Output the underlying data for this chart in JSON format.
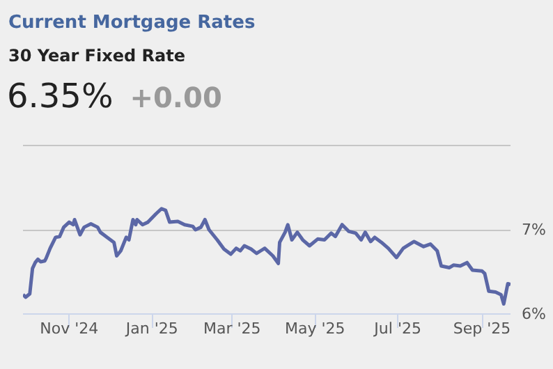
{
  "chart_data": {
    "type": "line",
    "title": "Current Mortgage Rates",
    "subtitle": "30 Year Fixed Rate",
    "annotations": [
      "6.35%",
      "+0.00"
    ],
    "x": [
      "2024-09-28",
      "2024-09-30",
      "2024-10-03",
      "2024-10-05",
      "2024-10-07",
      "2024-10-09",
      "2024-10-11",
      "2024-10-14",
      "2024-10-15",
      "2024-10-18",
      "2024-10-22",
      "2024-10-25",
      "2024-10-28",
      "2024-11-01",
      "2024-11-04",
      "2024-11-05",
      "2024-11-07",
      "2024-11-09",
      "2024-11-12",
      "2024-11-17",
      "2024-11-22",
      "2024-11-24",
      "2024-11-29",
      "2024-12-04",
      "2024-12-06",
      "2024-12-09",
      "2024-12-13",
      "2024-12-15",
      "2024-12-18",
      "2024-12-20",
      "2024-12-21",
      "2024-12-25",
      "2024-12-29",
      "2025-01-04",
      "2025-01-08",
      "2025-01-11",
      "2025-01-14",
      "2025-01-20",
      "2025-01-25",
      "2025-01-31",
      "2025-02-02",
      "2025-02-06",
      "2025-02-09",
      "2025-02-12",
      "2025-02-18",
      "2025-02-23",
      "2025-02-28",
      "2025-03-04",
      "2025-03-07",
      "2025-03-10",
      "2025-03-15",
      "2025-03-19",
      "2025-03-22",
      "2025-03-25",
      "2025-03-31",
      "2025-04-04",
      "2025-04-05",
      "2025-04-09",
      "2025-04-11",
      "2025-04-14",
      "2025-04-18",
      "2025-04-22",
      "2025-04-27",
      "2025-05-03",
      "2025-05-08",
      "2025-05-13",
      "2025-05-16",
      "2025-05-21",
      "2025-05-26",
      "2025-05-31",
      "2025-06-04",
      "2025-06-07",
      "2025-06-11",
      "2025-06-14",
      "2025-06-19",
      "2025-06-24",
      "2025-06-30",
      "2025-07-05",
      "2025-07-08",
      "2025-07-13",
      "2025-07-20",
      "2025-07-25",
      "2025-07-30",
      "2025-08-02",
      "2025-08-08",
      "2025-08-11",
      "2025-08-16",
      "2025-08-21",
      "2025-08-25",
      "2025-09-01",
      "2025-09-03",
      "2025-09-06",
      "2025-09-11",
      "2025-09-15",
      "2025-09-17",
      "2025-09-20",
      "2025-09-22"
    ],
    "series": [
      {
        "color": "#5b67a6",
        "values": [
          6.23,
          6.2,
          6.24,
          6.54,
          6.61,
          6.65,
          6.62,
          6.63,
          6.66,
          6.78,
          6.91,
          6.92,
          7.03,
          7.09,
          7.06,
          7.12,
          7.03,
          6.94,
          7.03,
          7.07,
          7.03,
          6.97,
          6.91,
          6.85,
          6.69,
          6.75,
          6.91,
          6.88,
          7.12,
          7.06,
          7.12,
          7.06,
          7.09,
          7.19,
          7.25,
          7.23,
          7.09,
          7.1,
          7.06,
          7.04,
          7.0,
          7.03,
          7.12,
          7.0,
          6.88,
          6.77,
          6.71,
          6.78,
          6.75,
          6.81,
          6.77,
          6.72,
          6.75,
          6.78,
          6.69,
          6.6,
          6.85,
          6.97,
          7.06,
          6.88,
          6.97,
          6.88,
          6.81,
          6.89,
          6.88,
          6.96,
          6.92,
          7.06,
          6.98,
          6.96,
          6.88,
          6.97,
          6.86,
          6.91,
          6.85,
          6.78,
          6.67,
          6.78,
          6.81,
          6.86,
          6.8,
          6.83,
          6.75,
          6.57,
          6.55,
          6.58,
          6.57,
          6.61,
          6.52,
          6.51,
          6.48,
          6.27,
          6.26,
          6.23,
          6.12,
          6.36,
          6.35
        ]
      }
    ],
    "xlim": [
      "2024-09-28",
      "2025-09-22"
    ],
    "xticks": [
      {
        "value": "2024-11-01",
        "label": "Nov '24"
      },
      {
        "value": "2025-01-01",
        "label": "Jan '25"
      },
      {
        "value": "2025-03-01",
        "label": "Mar '25"
      },
      {
        "value": "2025-05-01",
        "label": "May '25"
      },
      {
        "value": "2025-07-01",
        "label": "Jul '25"
      },
      {
        "value": "2025-09-01",
        "label": "Sep '25"
      }
    ],
    "ylim": [
      6,
      8
    ],
    "yticks": [
      {
        "value": 6,
        "label": "6%"
      },
      {
        "value": 7,
        "label": "7%"
      }
    ],
    "grid": "y",
    "marker": "none",
    "line_style": "solid"
  }
}
